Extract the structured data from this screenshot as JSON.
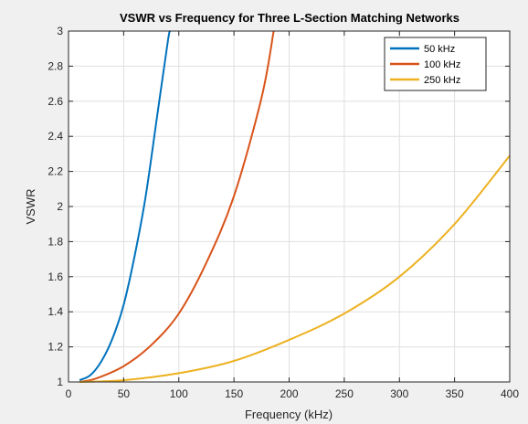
{
  "chart_data": {
    "type": "line",
    "title": "VSWR vs Frequency for Three L-Section Matching Networks",
    "xlabel": "Frequency (kHz)",
    "ylabel": "VSWR",
    "xlim": [
      0,
      400
    ],
    "ylim": [
      1,
      3
    ],
    "xticks": [
      0,
      50,
      100,
      150,
      200,
      250,
      300,
      350,
      400
    ],
    "yticks": [
      1,
      1.2,
      1.4,
      1.6,
      1.8,
      2,
      2.2,
      2.4,
      2.6,
      2.8,
      3
    ],
    "xtick_labels": [
      "0",
      "50",
      "100",
      "150",
      "200",
      "250",
      "300",
      "350",
      "400"
    ],
    "ytick_labels": [
      "1",
      "1.2",
      "1.4",
      "1.6",
      "1.8",
      "2",
      "2.2",
      "2.4",
      "2.6",
      "2.8",
      "3"
    ],
    "grid": true,
    "legend_position": "top-right",
    "series": [
      {
        "name": "50 kHz",
        "color": "#0072bd",
        "x": [
          10,
          20,
          30,
          40,
          50,
          60,
          70,
          80,
          90,
          92
        ],
        "y": [
          1.01,
          1.04,
          1.12,
          1.25,
          1.44,
          1.72,
          2.06,
          2.5,
          2.94,
          3.0
        ]
      },
      {
        "name": "100 kHz",
        "color": "#d95319",
        "x": [
          10,
          25,
          50,
          75,
          100,
          125,
          150,
          175,
          186
        ],
        "y": [
          1.0,
          1.02,
          1.09,
          1.21,
          1.39,
          1.68,
          2.06,
          2.62,
          3.0
        ]
      },
      {
        "name": "250 kHz",
        "color": "#edb120",
        "x": [
          10,
          50,
          100,
          150,
          200,
          250,
          300,
          350,
          400
        ],
        "y": [
          1.0,
          1.01,
          1.05,
          1.12,
          1.24,
          1.39,
          1.6,
          1.9,
          2.29
        ]
      }
    ]
  }
}
